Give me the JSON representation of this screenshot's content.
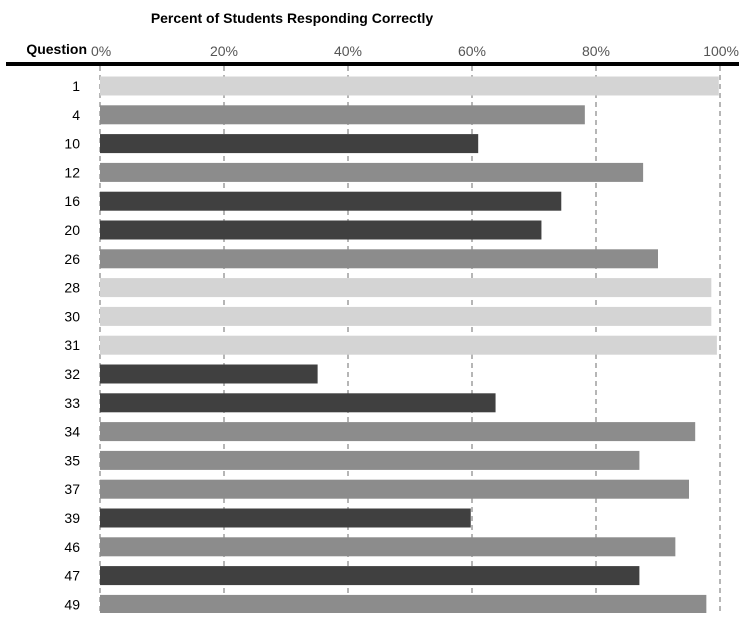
{
  "chart_data": {
    "type": "bar",
    "orientation": "horizontal",
    "title": "Percent of Students Responding Correctly",
    "y_header": "Question",
    "xlim": [
      0,
      100
    ],
    "x_ticks": [
      "0%",
      "20%",
      "40%",
      "60%",
      "80%",
      "100%"
    ],
    "grid": true,
    "colors": {
      "light": "#d4d4d4",
      "medium": "#8c8c8c",
      "dark": "#404040"
    },
    "categories": [
      "1",
      "4",
      "10",
      "12",
      "16",
      "20",
      "26",
      "28",
      "30",
      "31",
      "32",
      "33",
      "34",
      "35",
      "37",
      "39",
      "46",
      "47",
      "49"
    ],
    "values": [
      99.8,
      78.2,
      61.0,
      87.6,
      74.4,
      71.2,
      90.0,
      98.6,
      98.6,
      99.5,
      35.1,
      63.8,
      96.0,
      87.0,
      95.0,
      59.8,
      92.8,
      87.0,
      97.8
    ],
    "shades": [
      "light",
      "medium",
      "dark",
      "medium",
      "dark",
      "dark",
      "medium",
      "light",
      "light",
      "light",
      "dark",
      "dark",
      "medium",
      "medium",
      "medium",
      "dark",
      "medium",
      "dark",
      "medium"
    ]
  }
}
